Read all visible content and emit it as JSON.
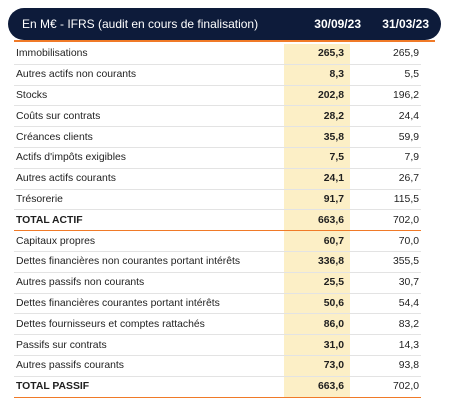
{
  "header": {
    "label": "En M€ - IFRS (audit en cours de finalisation)",
    "col1": "30/09/23",
    "col2": "31/03/23"
  },
  "colors": {
    "header_bg": "#0d1b3a",
    "accent": "#f07a28",
    "highlight": "#fcefc6"
  },
  "rows": [
    {
      "label": "Immobilisations",
      "v1": "265,3",
      "v2": "265,9"
    },
    {
      "label": "Autres actifs non courants",
      "v1": "8,3",
      "v2": "5,5"
    },
    {
      "label": "Stocks",
      "v1": "202,8",
      "v2": "196,2"
    },
    {
      "label": "Coûts sur contrats",
      "v1": "28,2",
      "v2": "24,4"
    },
    {
      "label": "Créances clients",
      "v1": "35,8",
      "v2": "59,9"
    },
    {
      "label": "Actifs d'impôts exigibles",
      "v1": "7,5",
      "v2": "7,9"
    },
    {
      "label": "Autres actifs courants",
      "v1": "24,1",
      "v2": "26,7"
    },
    {
      "label": "Trésorerie",
      "v1": "91,7",
      "v2": "115,5"
    },
    {
      "label": "TOTAL ACTIF",
      "v1": "663,6",
      "v2": "702,0"
    },
    {
      "label": "Capitaux propres",
      "v1": "60,7",
      "v2": "70,0"
    },
    {
      "label": "Dettes financières non courantes portant intérêts",
      "v1": "336,8",
      "v2": "355,5"
    },
    {
      "label": "Autres passifs non courants",
      "v1": "25,5",
      "v2": "30,7"
    },
    {
      "label": "Dettes financières courantes portant intérêts",
      "v1": "50,6",
      "v2": "54,4"
    },
    {
      "label": "Dettes fournisseurs et comptes rattachés",
      "v1": "86,0",
      "v2": "83,2"
    },
    {
      "label": "Passifs sur contrats",
      "v1": "31,0",
      "v2": "14,3"
    },
    {
      "label": "Autres passifs courants",
      "v1": "73,0",
      "v2": "93,8"
    },
    {
      "label": "TOTAL PASSIF",
      "v1": "663,6",
      "v2": "702,0"
    }
  ]
}
